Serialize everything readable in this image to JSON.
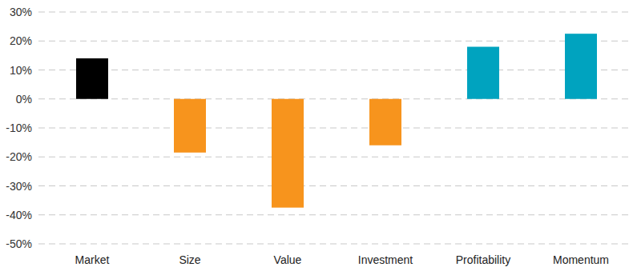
{
  "chart_data": {
    "type": "bar",
    "categories": [
      "Market",
      "Size",
      "Value",
      "Investment",
      "Profitability",
      "Momentum"
    ],
    "values": [
      14,
      -18.5,
      -37.5,
      -16,
      18,
      22.5
    ],
    "colors": [
      "#000000",
      "#f7941d",
      "#f7941d",
      "#f7941d",
      "#00a3bf",
      "#00a3bf"
    ],
    "ylim": [
      -50,
      30
    ],
    "yticks": [
      {
        "value": -50,
        "label": "-50%"
      },
      {
        "value": -40,
        "label": "-40%"
      },
      {
        "value": -30,
        "label": "-30%"
      },
      {
        "value": -20,
        "label": "-20%"
      },
      {
        "value": -10,
        "label": "-10%"
      },
      {
        "value": 0,
        "label": "0%"
      },
      {
        "value": 10,
        "label": "10%"
      },
      {
        "value": 20,
        "label": "20%"
      },
      {
        "value": 30,
        "label": "30%"
      }
    ],
    "grid": true
  }
}
